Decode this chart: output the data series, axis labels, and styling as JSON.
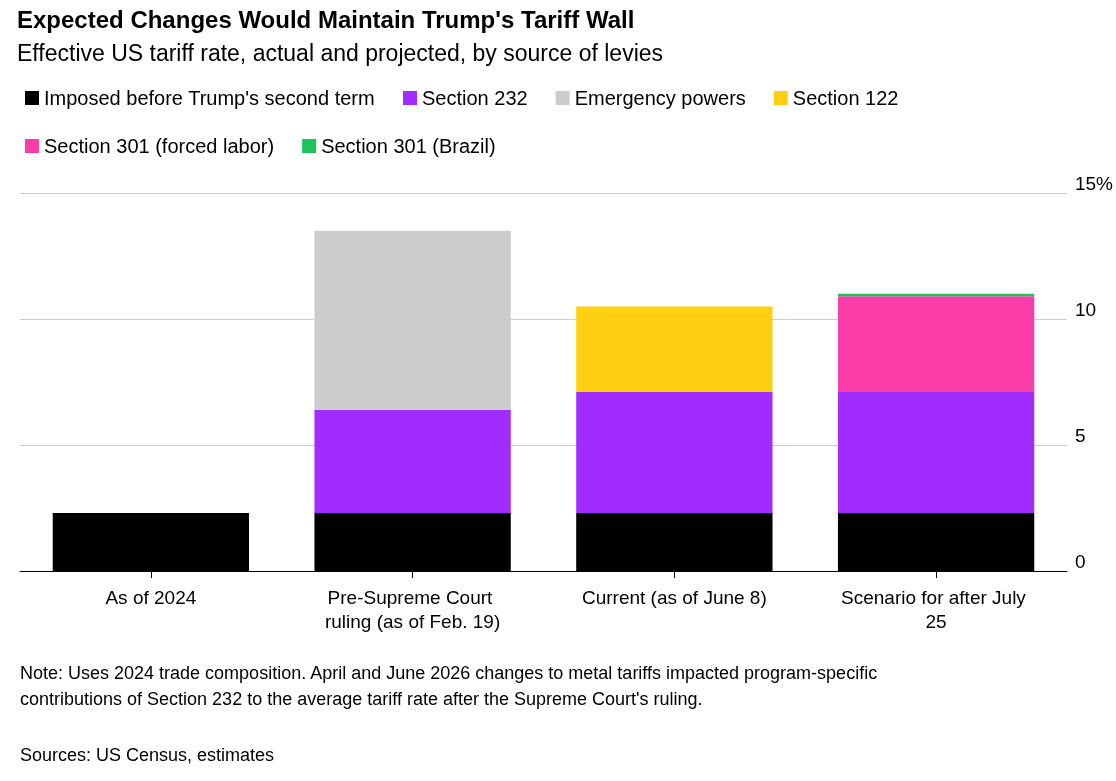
{
  "chart_data": {
    "type": "bar",
    "title": "Expected Changes Would Maintain Trump's Tariff Wall",
    "subtitle": "Effective US tariff rate, actual and projected, by source of levies",
    "categories": [
      "As of 2024",
      "Pre-Supreme Court ruling (as of Feb. 19)",
      "Current (as of June 8)",
      "Scenario for after July 25"
    ],
    "stacked": true,
    "series": [
      {
        "name": "Imposed before Trump's second term",
        "color": "#000000",
        "values": [
          2.3,
          2.3,
          2.3,
          2.3
        ]
      },
      {
        "name": "Section 232",
        "color": "#a22bff",
        "values": [
          null,
          4.1,
          4.8,
          4.8
        ]
      },
      {
        "name": "Emergency powers",
        "color": "#cccccc",
        "values": [
          null,
          7.1,
          null,
          null
        ]
      },
      {
        "name": "Section 122",
        "color": "#ffcf12",
        "values": [
          null,
          null,
          3.4,
          null
        ]
      },
      {
        "name": "Section 301 (forced labor)",
        "color": "#fb3da9",
        "values": [
          null,
          null,
          null,
          3.8
        ]
      },
      {
        "name": "Section 301 (Brazil)",
        "color": "#1ec45a",
        "values": [
          null,
          null,
          null,
          0.1
        ]
      }
    ],
    "ylim": [
      0,
      15
    ],
    "yticks": [
      0,
      5,
      10,
      {
        "value": 15,
        "label": "15%"
      }
    ],
    "grid": "y",
    "legend": "top left",
    "annotations": [
      "Note: Uses 2024 trade composition. April and June 2026 changes to metal tariffs impacted program-specific contributions of Section 232 to the average tariff rate after the Supreme Court's ruling.",
      "Sources: US Census, estimates"
    ]
  }
}
